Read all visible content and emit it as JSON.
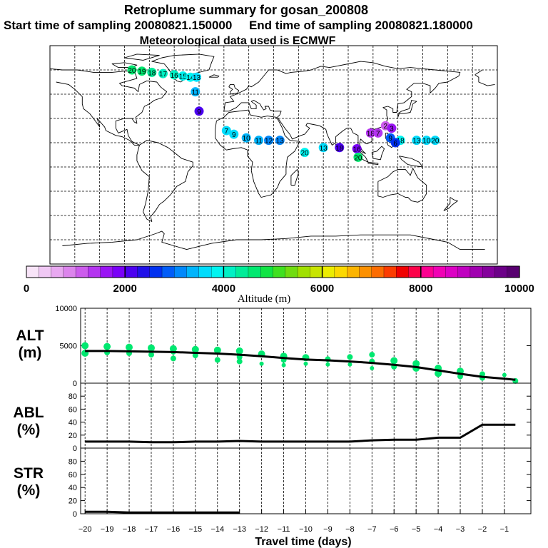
{
  "header": {
    "title": "Retroplume summary for gosan_200808",
    "sampling_line": "Start time of sampling 20080821.150000     End time of sampling 20080821.180000",
    "met_line": "Meteorological data used is ECMWF"
  },
  "colorbar": {
    "ticks": [
      "0",
      "2000",
      "4000",
      "6000",
      "8000",
      "10000"
    ],
    "label": "Altitude (m)",
    "colors": [
      "#f8e4f8",
      "#f0c8f4",
      "#e8a8f0",
      "#dc84ec",
      "#cc5cec",
      "#b434f0",
      "#9a14f4",
      "#7a00f8",
      "#4b00f0",
      "#2010e8",
      "#0030f0",
      "#005cf8",
      "#0088fc",
      "#00b4fc",
      "#00dcfc",
      "#00f4f0",
      "#00f0c4",
      "#00ec98",
      "#00e870",
      "#10e444",
      "#40e020",
      "#70dc10",
      "#a0e000",
      "#c8e400",
      "#ecec00",
      "#fcd800",
      "#fcb400",
      "#fc9000",
      "#fc6c00",
      "#fc3c00",
      "#f00000",
      "#fc0048",
      "#fc0090",
      "#f000b4",
      "#dc00c4",
      "#c000c0",
      "#a000b0",
      "#84009c",
      "#6c0088",
      "#580070"
    ]
  },
  "map": {
    "labels": [
      {
        "text": "20",
        "lon": -84,
        "lat": 70,
        "alt": 4600
      },
      {
        "text": "19",
        "lon": -76,
        "lat": 69,
        "alt": 4500
      },
      {
        "text": "18",
        "lon": -68,
        "lat": 68,
        "alt": 4300
      },
      {
        "text": "17",
        "lon": -59,
        "lat": 67,
        "alt": 4200
      },
      {
        "text": "16",
        "lon": -50,
        "lat": 66,
        "alt": 4000
      },
      {
        "text": "15",
        "lon": -43,
        "lat": 65,
        "alt": 3900
      },
      {
        "text": "14",
        "lon": -37,
        "lat": 64,
        "alt": 3800
      },
      {
        "text": "13",
        "lon": -32,
        "lat": 64,
        "alt": 3700
      },
      {
        "text": "11",
        "lon": -33,
        "lat": 52,
        "alt": 3300
      },
      {
        "text": "9",
        "lon": -30,
        "lat": 36,
        "alt": 2200
      },
      {
        "text": "7",
        "lon": -8,
        "lat": 20,
        "alt": 3600
      },
      {
        "text": "9",
        "lon": -2,
        "lat": 17,
        "alt": 3500
      },
      {
        "text": "10",
        "lon": 8,
        "lat": 14,
        "alt": 3400
      },
      {
        "text": "11",
        "lon": 18,
        "lat": 12,
        "alt": 3300
      },
      {
        "text": "12",
        "lon": 26,
        "lat": 12,
        "alt": 3200
      },
      {
        "text": "13",
        "lon": 35,
        "lat": 12,
        "alt": 3000
      },
      {
        "text": "18",
        "lon": 132,
        "lat": 12,
        "alt": 3800
      },
      {
        "text": "13",
        "lon": 145,
        "lat": 12,
        "alt": 3700
      },
      {
        "text": "10",
        "lon": 153,
        "lat": 12,
        "alt": 3600
      },
      {
        "text": "20",
        "lon": 160,
        "lat": 12,
        "alt": 3500
      },
      {
        "text": "20",
        "lon": 55,
        "lat": 2,
        "alt": 3900
      },
      {
        "text": "13",
        "lon": 70,
        "lat": 6,
        "alt": 3700
      },
      {
        "text": "18",
        "lon": 83,
        "lat": 6,
        "alt": 2100
      },
      {
        "text": "16",
        "lon": 97,
        "lat": 5,
        "alt": 1900
      },
      {
        "text": "18",
        "lon": 108,
        "lat": 18,
        "alt": 1400
      },
      {
        "text": "7",
        "lon": 114,
        "lat": 18,
        "alt": 1300
      },
      {
        "text": "2",
        "lon": 120,
        "lat": 24,
        "alt": 1200
      },
      {
        "text": "9",
        "lon": 124,
        "lat": 14,
        "alt": 2800
      },
      {
        "text": "6",
        "lon": 128,
        "lat": 10,
        "alt": 2600
      },
      {
        "text": "3",
        "lon": 125,
        "lat": 22,
        "alt": 1600
      },
      {
        "text": "20",
        "lon": 98,
        "lat": -2,
        "alt": 4500
      }
    ]
  },
  "y_labels": {
    "alt": [
      "ALT",
      "(m)"
    ],
    "abl": [
      "ABL",
      "(%)"
    ],
    "str": [
      "STR",
      "(%)"
    ]
  },
  "x_axis_label": "Travel time (days)",
  "chart_data": [
    {
      "type": "line",
      "name": "ALT",
      "title": "",
      "xlabel": "Travel time (days)",
      "ylabel": "ALT (m)",
      "xlim": [
        -20.2,
        0.2
      ],
      "ylim": [
        0,
        10000
      ],
      "x_ticks": [
        -20,
        -19,
        -18,
        -17,
        -16,
        -15,
        -14,
        -13,
        -12,
        -11,
        -10,
        -9,
        -8,
        -7,
        -6,
        -5,
        -4,
        -3,
        -2,
        -1
      ],
      "y_ticks": [
        0,
        5000,
        10000
      ],
      "line": {
        "x": [
          -20,
          -19,
          -18,
          -17,
          -16,
          -15,
          -14,
          -13,
          -12,
          -11,
          -10,
          -9,
          -8,
          -7,
          -6,
          -5,
          -4,
          -3,
          -2,
          -1,
          -0.5
        ],
        "y": [
          4300,
          4300,
          4250,
          4200,
          4150,
          4050,
          3950,
          3800,
          3600,
          3350,
          3150,
          3050,
          2900,
          2700,
          2450,
          2150,
          1700,
          1250,
          850,
          600,
          450
        ]
      },
      "cluster_points": {
        "x": [
          -20,
          -20,
          -19,
          -19,
          -18,
          -18,
          -17,
          -17,
          -16,
          -16,
          -16,
          -15,
          -15,
          -14,
          -14,
          -13,
          -13,
          -13,
          -12,
          -12,
          -11,
          -11,
          -11,
          -10,
          -10,
          -9,
          -9,
          -8,
          -8,
          -7,
          -7,
          -7,
          -6,
          -6,
          -5,
          -5,
          -4,
          -4,
          -3,
          -3,
          -2,
          -2,
          -1,
          -0.5
        ],
        "y": [
          5000,
          4000,
          4900,
          4100,
          4800,
          4000,
          4700,
          3800,
          4600,
          4200,
          3300,
          4500,
          3700,
          4400,
          3100,
          4300,
          3500,
          2900,
          3900,
          2600,
          3600,
          3100,
          2400,
          3400,
          2600,
          3200,
          2500,
          3500,
          2500,
          3800,
          2900,
          2000,
          3000,
          2200,
          2600,
          2000,
          2000,
          1300,
          1600,
          900,
          1200,
          700,
          1100,
          300
        ],
        "r": [
          5,
          5,
          5,
          4,
          5,
          4,
          5,
          4,
          5,
          4,
          4,
          5,
          4,
          5,
          4,
          5,
          4,
          4,
          5,
          3,
          5,
          4,
          3,
          5,
          3,
          4,
          3,
          4,
          3,
          4,
          4,
          3,
          5,
          4,
          5,
          5,
          5,
          5,
          5,
          4,
          4,
          4,
          3,
          4
        ],
        "color": "#00e870"
      }
    },
    {
      "type": "line",
      "name": "ABL",
      "ylabel": "ABL (%)",
      "xlim": [
        -20.2,
        0.2
      ],
      "ylim": [
        0,
        100
      ],
      "y_ticks": [
        0,
        20,
        40,
        60,
        80
      ],
      "x": [
        -20,
        -19,
        -18,
        -17,
        -16,
        -15,
        -14,
        -13,
        -12,
        -11,
        -10,
        -9,
        -8,
        -7,
        -6,
        -5,
        -4,
        -3,
        -2,
        -1,
        -0.5
      ],
      "y": [
        10,
        10,
        10,
        9,
        9,
        10,
        10,
        11,
        10,
        10,
        10,
        10,
        10,
        12,
        13,
        13,
        16,
        16,
        36,
        36,
        36
      ]
    },
    {
      "type": "line",
      "name": "STR",
      "ylabel": "STR (%)",
      "xlim": [
        -20.2,
        0.2
      ],
      "ylim": [
        0,
        100
      ],
      "y_ticks": [
        0,
        20,
        40,
        60,
        80
      ],
      "x": [
        -20,
        -19,
        -18,
        -17,
        -16,
        -15,
        -14,
        -13
      ],
      "y": [
        3,
        3,
        2,
        2,
        2,
        2,
        2,
        2
      ]
    }
  ]
}
